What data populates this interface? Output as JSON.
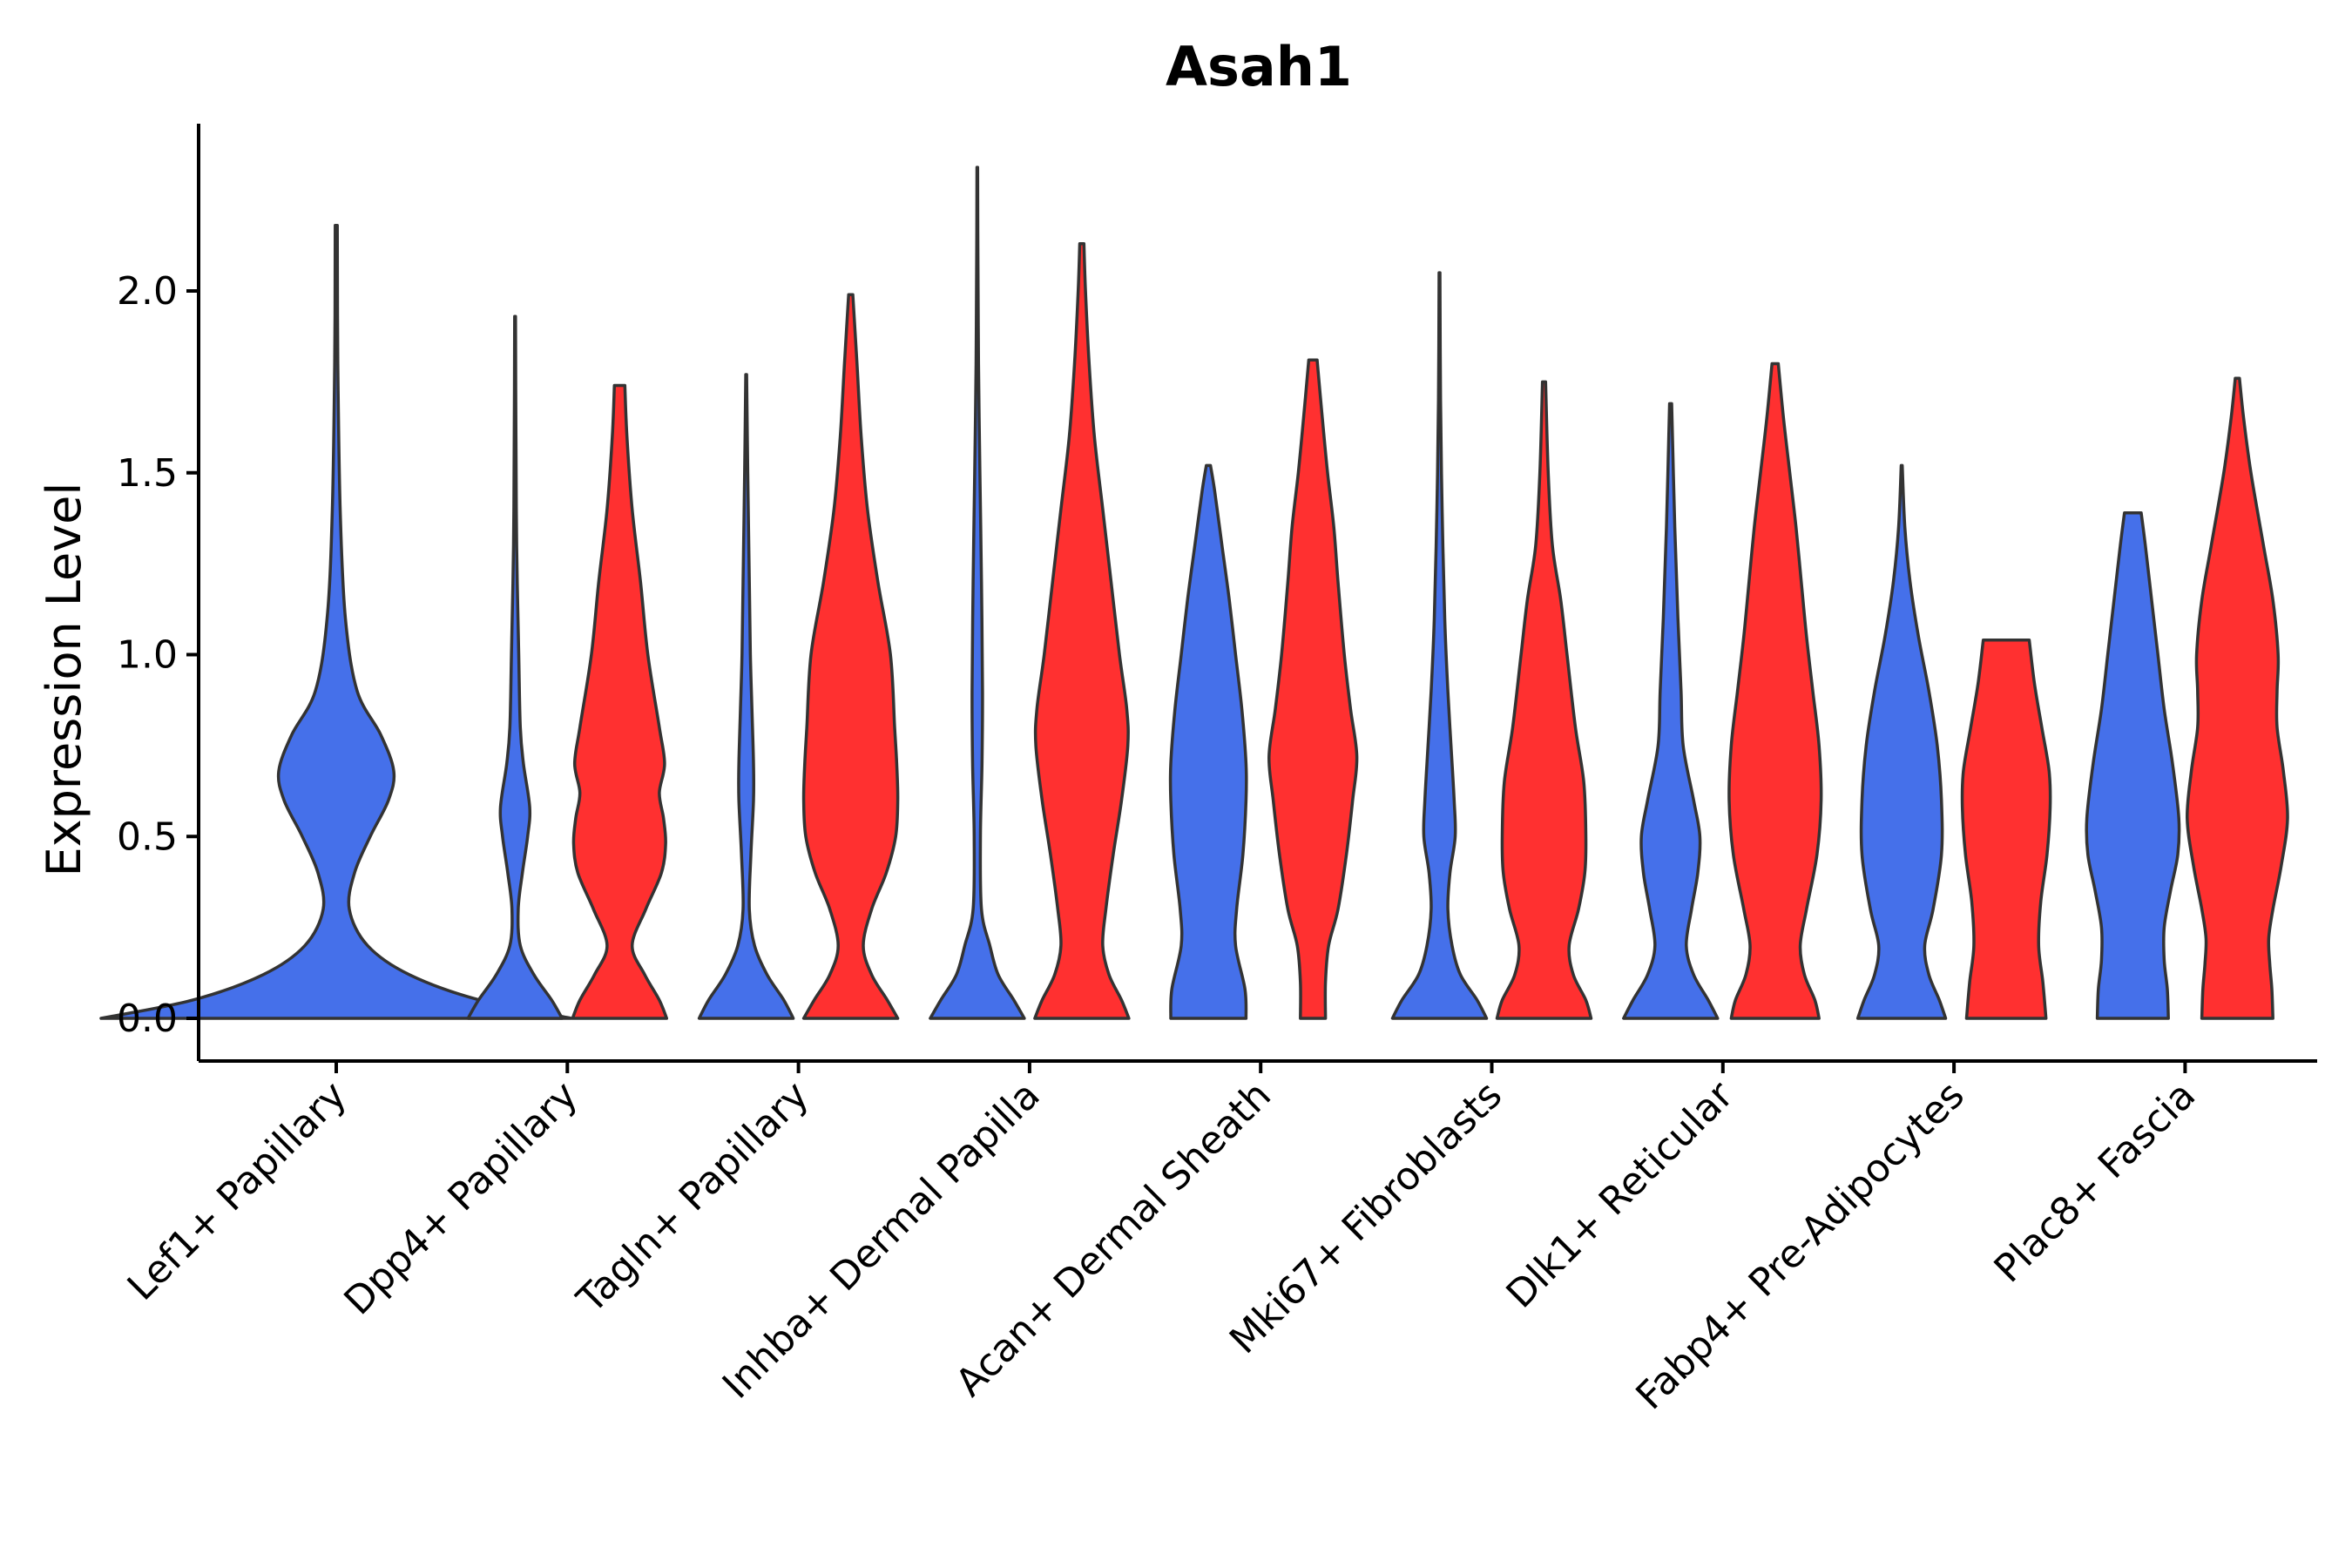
{
  "chart_data": {
    "type": "violin",
    "title": "Asah1",
    "xlabel": "",
    "ylabel": "Expression Level",
    "ylim": [
      -0.12,
      2.45
    ],
    "yticks": [
      0.0,
      0.5,
      1.0,
      1.5,
      2.0
    ],
    "ytick_labels": [
      "0.0",
      "0.5",
      "1.0",
      "1.5",
      "2.0"
    ],
    "grid": false,
    "legend": "none",
    "colors": {
      "group_a": "#4570EA",
      "group_b": "#FF3030",
      "outline": "#333333"
    },
    "categories": [
      "Lef1+ Papillary",
      "Dpp4+ Papillary",
      "Tagln+ Papillary",
      "Inhba+ Dermal Papilla",
      "Acan+ Dermal Sheath",
      "Mki67+ Fibroblasts",
      "Dlk1+ Reticular",
      "Fabp4+ Pre-Adipocytes",
      "Plac8+ Fascia"
    ],
    "violins": [
      {
        "category": "Lef1+ Papillary",
        "group": "blue",
        "max": 2.18,
        "profile": [
          [
            0.0,
            0.9
          ],
          [
            0.05,
            0.55
          ],
          [
            0.12,
            0.28
          ],
          [
            0.2,
            0.12
          ],
          [
            0.3,
            0.05
          ],
          [
            0.4,
            0.07
          ],
          [
            0.5,
            0.13
          ],
          [
            0.6,
            0.2
          ],
          [
            0.68,
            0.22
          ],
          [
            0.78,
            0.17
          ],
          [
            0.9,
            0.08
          ],
          [
            1.1,
            0.035
          ],
          [
            1.4,
            0.015
          ],
          [
            1.8,
            0.006
          ],
          [
            2.18,
            0.004
          ]
        ]
      },
      {
        "category": "Dpp4+ Papillary",
        "group": "blue",
        "max": 1.93,
        "profile": [
          [
            0.0,
            0.45
          ],
          [
            0.05,
            0.35
          ],
          [
            0.12,
            0.18
          ],
          [
            0.2,
            0.05
          ],
          [
            0.3,
            0.03
          ],
          [
            0.4,
            0.07
          ],
          [
            0.5,
            0.12
          ],
          [
            0.58,
            0.14
          ],
          [
            0.7,
            0.08
          ],
          [
            0.8,
            0.05
          ],
          [
            1.0,
            0.035
          ],
          [
            1.3,
            0.015
          ],
          [
            1.6,
            0.008
          ],
          [
            1.93,
            0.004
          ]
        ]
      },
      {
        "category": "Dpp4+ Papillary",
        "group": "red",
        "max": 1.74,
        "profile": [
          [
            0.0,
            0.45
          ],
          [
            0.05,
            0.38
          ],
          [
            0.12,
            0.24
          ],
          [
            0.2,
            0.12
          ],
          [
            0.3,
            0.25
          ],
          [
            0.4,
            0.4
          ],
          [
            0.48,
            0.44
          ],
          [
            0.55,
            0.42
          ],
          [
            0.62,
            0.38
          ],
          [
            0.7,
            0.43
          ],
          [
            0.8,
            0.38
          ],
          [
            1.0,
            0.27
          ],
          [
            1.2,
            0.2
          ],
          [
            1.4,
            0.12
          ],
          [
            1.6,
            0.07
          ],
          [
            1.74,
            0.05
          ]
        ]
      },
      {
        "category": "Tagln+ Papillary",
        "group": "blue",
        "max": 1.77,
        "profile": [
          [
            0.0,
            0.45
          ],
          [
            0.05,
            0.36
          ],
          [
            0.12,
            0.2
          ],
          [
            0.2,
            0.08
          ],
          [
            0.3,
            0.03
          ],
          [
            0.45,
            0.045
          ],
          [
            0.6,
            0.07
          ],
          [
            0.7,
            0.07
          ],
          [
            0.85,
            0.055
          ],
          [
            1.0,
            0.04
          ],
          [
            1.2,
            0.03
          ],
          [
            1.5,
            0.015
          ],
          [
            1.77,
            0.004
          ]
        ]
      },
      {
        "category": "Tagln+ Papillary",
        "group": "red",
        "max": 1.99,
        "profile": [
          [
            0.0,
            0.45
          ],
          [
            0.05,
            0.35
          ],
          [
            0.12,
            0.2
          ],
          [
            0.2,
            0.12
          ],
          [
            0.3,
            0.2
          ],
          [
            0.4,
            0.34
          ],
          [
            0.5,
            0.43
          ],
          [
            0.6,
            0.45
          ],
          [
            0.7,
            0.44
          ],
          [
            0.8,
            0.42
          ],
          [
            1.0,
            0.38
          ],
          [
            1.2,
            0.26
          ],
          [
            1.4,
            0.16
          ],
          [
            1.6,
            0.1
          ],
          [
            1.8,
            0.06
          ],
          [
            1.99,
            0.02
          ]
        ]
      },
      {
        "category": "Inhba+ Dermal Papilla",
        "group": "blue",
        "max": 2.34,
        "profile": [
          [
            0.0,
            0.45
          ],
          [
            0.05,
            0.35
          ],
          [
            0.12,
            0.2
          ],
          [
            0.2,
            0.12
          ],
          [
            0.3,
            0.04
          ],
          [
            0.5,
            0.03
          ],
          [
            0.7,
            0.045
          ],
          [
            0.9,
            0.05
          ],
          [
            1.2,
            0.04
          ],
          [
            1.5,
            0.025
          ],
          [
            1.8,
            0.012
          ],
          [
            2.1,
            0.006
          ],
          [
            2.34,
            0.003
          ]
        ]
      },
      {
        "category": "Inhba+ Dermal Papilla",
        "group": "red",
        "max": 2.13,
        "profile": [
          [
            0.0,
            0.45
          ],
          [
            0.05,
            0.38
          ],
          [
            0.12,
            0.26
          ],
          [
            0.2,
            0.2
          ],
          [
            0.3,
            0.23
          ],
          [
            0.45,
            0.3
          ],
          [
            0.6,
            0.38
          ],
          [
            0.75,
            0.44
          ],
          [
            0.85,
            0.43
          ],
          [
            1.0,
            0.36
          ],
          [
            1.2,
            0.28
          ],
          [
            1.4,
            0.2
          ],
          [
            1.6,
            0.12
          ],
          [
            1.8,
            0.07
          ],
          [
            2.0,
            0.035
          ],
          [
            2.13,
            0.02
          ]
        ]
      },
      {
        "category": "Acan+ Dermal Sheath",
        "group": "blue",
        "max": 1.52,
        "profile": [
          [
            0.0,
            0.36
          ],
          [
            0.08,
            0.35
          ],
          [
            0.2,
            0.26
          ],
          [
            0.3,
            0.27
          ],
          [
            0.45,
            0.33
          ],
          [
            0.6,
            0.36
          ],
          [
            0.7,
            0.36
          ],
          [
            0.85,
            0.32
          ],
          [
            1.0,
            0.26
          ],
          [
            1.15,
            0.2
          ],
          [
            1.3,
            0.13
          ],
          [
            1.45,
            0.06
          ],
          [
            1.52,
            0.02
          ]
        ]
      },
      {
        "category": "Acan+ Dermal Sheath",
        "group": "red",
        "max": 1.81,
        "profile": [
          [
            0.0,
            0.12
          ],
          [
            0.1,
            0.12
          ],
          [
            0.2,
            0.15
          ],
          [
            0.3,
            0.24
          ],
          [
            0.45,
            0.32
          ],
          [
            0.6,
            0.38
          ],
          [
            0.72,
            0.42
          ],
          [
            0.85,
            0.36
          ],
          [
            1.0,
            0.3
          ],
          [
            1.2,
            0.24
          ],
          [
            1.35,
            0.2
          ],
          [
            1.5,
            0.14
          ],
          [
            1.65,
            0.09
          ],
          [
            1.81,
            0.04
          ]
        ]
      },
      {
        "category": "Mki67+ Fibroblasts",
        "group": "blue",
        "max": 2.05,
        "profile": [
          [
            0.0,
            0.45
          ],
          [
            0.05,
            0.36
          ],
          [
            0.12,
            0.2
          ],
          [
            0.2,
            0.12
          ],
          [
            0.3,
            0.08
          ],
          [
            0.4,
            0.1
          ],
          [
            0.5,
            0.15
          ],
          [
            0.6,
            0.14
          ],
          [
            0.75,
            0.11
          ],
          [
            0.9,
            0.08
          ],
          [
            1.1,
            0.05
          ],
          [
            1.4,
            0.025
          ],
          [
            1.7,
            0.01
          ],
          [
            2.05,
            0.004
          ]
        ]
      },
      {
        "category": "Mki67+ Fibroblasts",
        "group": "red",
        "max": 1.75,
        "profile": [
          [
            0.0,
            0.45
          ],
          [
            0.05,
            0.4
          ],
          [
            0.12,
            0.28
          ],
          [
            0.2,
            0.24
          ],
          [
            0.3,
            0.33
          ],
          [
            0.4,
            0.39
          ],
          [
            0.5,
            0.4
          ],
          [
            0.65,
            0.38
          ],
          [
            0.8,
            0.3
          ],
          [
            1.0,
            0.22
          ],
          [
            1.15,
            0.16
          ],
          [
            1.3,
            0.08
          ],
          [
            1.5,
            0.04
          ],
          [
            1.75,
            0.015
          ]
        ]
      },
      {
        "category": "Dlk1+ Reticular",
        "group": "blue",
        "max": 1.69,
        "profile": [
          [
            0.0,
            0.45
          ],
          [
            0.05,
            0.36
          ],
          [
            0.12,
            0.22
          ],
          [
            0.2,
            0.15
          ],
          [
            0.3,
            0.2
          ],
          [
            0.4,
            0.26
          ],
          [
            0.5,
            0.28
          ],
          [
            0.6,
            0.22
          ],
          [
            0.75,
            0.12
          ],
          [
            0.9,
            0.1
          ],
          [
            1.1,
            0.07
          ],
          [
            1.35,
            0.04
          ],
          [
            1.69,
            0.01
          ]
        ]
      },
      {
        "category": "Dlk1+ Reticular",
        "group": "red",
        "max": 1.8,
        "profile": [
          [
            0.0,
            0.42
          ],
          [
            0.05,
            0.38
          ],
          [
            0.12,
            0.28
          ],
          [
            0.2,
            0.24
          ],
          [
            0.3,
            0.3
          ],
          [
            0.45,
            0.4
          ],
          [
            0.6,
            0.44
          ],
          [
            0.75,
            0.42
          ],
          [
            0.9,
            0.36
          ],
          [
            1.05,
            0.3
          ],
          [
            1.2,
            0.25
          ],
          [
            1.35,
            0.2
          ],
          [
            1.5,
            0.14
          ],
          [
            1.65,
            0.08
          ],
          [
            1.8,
            0.03
          ]
        ]
      },
      {
        "category": "Fabp4+ Pre-Adipocytes",
        "group": "blue",
        "max": 1.52,
        "profile": [
          [
            0.0,
            0.42
          ],
          [
            0.05,
            0.36
          ],
          [
            0.12,
            0.26
          ],
          [
            0.2,
            0.22
          ],
          [
            0.3,
            0.3
          ],
          [
            0.45,
            0.38
          ],
          [
            0.6,
            0.38
          ],
          [
            0.75,
            0.34
          ],
          [
            0.9,
            0.26
          ],
          [
            1.05,
            0.16
          ],
          [
            1.2,
            0.08
          ],
          [
            1.35,
            0.03
          ],
          [
            1.52,
            0.005
          ]
        ]
      },
      {
        "category": "Fabp4+ Pre-Adipocytes",
        "group": "red",
        "max": 1.04,
        "profile": [
          [
            0.0,
            0.38
          ],
          [
            0.1,
            0.35
          ],
          [
            0.2,
            0.31
          ],
          [
            0.32,
            0.33
          ],
          [
            0.45,
            0.39
          ],
          [
            0.58,
            0.42
          ],
          [
            0.68,
            0.41
          ],
          [
            0.8,
            0.34
          ],
          [
            0.92,
            0.27
          ],
          [
            1.04,
            0.22
          ]
        ]
      },
      {
        "category": "Plac8+ Fascia",
        "group": "blue",
        "max": 1.39,
        "profile": [
          [
            0.0,
            0.34
          ],
          [
            0.08,
            0.33
          ],
          [
            0.16,
            0.3
          ],
          [
            0.25,
            0.3
          ],
          [
            0.35,
            0.36
          ],
          [
            0.45,
            0.43
          ],
          [
            0.55,
            0.44
          ],
          [
            0.7,
            0.38
          ],
          [
            0.85,
            0.3
          ],
          [
            1.0,
            0.24
          ],
          [
            1.15,
            0.18
          ],
          [
            1.3,
            0.12
          ],
          [
            1.39,
            0.08
          ]
        ]
      },
      {
        "category": "Plac8+ Fascia",
        "group": "red",
        "max": 1.76,
        "profile": [
          [
            0.0,
            0.34
          ],
          [
            0.08,
            0.33
          ],
          [
            0.15,
            0.31
          ],
          [
            0.22,
            0.3
          ],
          [
            0.3,
            0.34
          ],
          [
            0.42,
            0.42
          ],
          [
            0.55,
            0.48
          ],
          [
            0.68,
            0.44
          ],
          [
            0.8,
            0.38
          ],
          [
            0.9,
            0.38
          ],
          [
            1.0,
            0.39
          ],
          [
            1.15,
            0.34
          ],
          [
            1.3,
            0.25
          ],
          [
            1.5,
            0.13
          ],
          [
            1.65,
            0.06
          ],
          [
            1.76,
            0.02
          ]
        ]
      }
    ]
  }
}
